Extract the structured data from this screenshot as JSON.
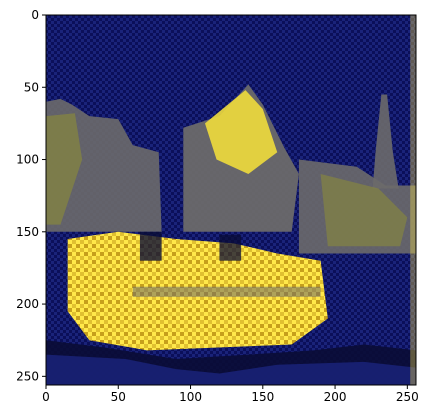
{
  "chart_data": {
    "type": "heatmap",
    "title": "",
    "xlabel": "",
    "ylabel": "",
    "image_shape": [
      256,
      256
    ],
    "xlim": [
      0,
      256
    ],
    "ylim": [
      256,
      0
    ],
    "x_ticks": [
      0,
      50,
      100,
      150,
      200,
      250
    ],
    "y_ticks": [
      0,
      50,
      100,
      150,
      200,
      250
    ],
    "x_tick_labels": [
      "0",
      "50",
      "100",
      "150",
      "200",
      "250"
    ],
    "y_tick_labels": [
      "0",
      "50",
      "100",
      "150",
      "200",
      "250"
    ],
    "grid": false,
    "legend": "none",
    "colors": {
      "background": "#0b0f5a",
      "dark_navy": "#0a0c35",
      "blue": "#1e2a8c",
      "gray": "#6b6a6a",
      "olive": "#8a8a3a",
      "yellow": "#f0dc3c",
      "bright_yellow": "#ffe84a"
    },
    "content_regions": [
      {
        "region": "upper sky",
        "x_range": [
          0,
          256
        ],
        "y_range": [
          0,
          55
        ],
        "dominant_color": "dark blue"
      },
      {
        "region": "left buildings",
        "x_range": [
          0,
          80
        ],
        "y_range": [
          55,
          150
        ],
        "dominant_color": "gray-olive"
      },
      {
        "region": "central gabled roof",
        "x_range": [
          95,
          175
        ],
        "y_range": [
          45,
          150
        ],
        "dominant_color": "yellow and gray"
      },
      {
        "region": "right tower",
        "x_range": [
          225,
          245
        ],
        "y_range": [
          55,
          120
        ],
        "dominant_color": "gray"
      },
      {
        "region": "right buildings",
        "x_range": [
          175,
          256
        ],
        "y_range": [
          100,
          160
        ],
        "dominant_color": "gray-olive"
      },
      {
        "region": "lower yellow facade",
        "x_range": [
          15,
          190
        ],
        "y_range": [
          150,
          230
        ],
        "dominant_color": "bright yellow"
      },
      {
        "region": "bottom foreground",
        "x_range": [
          0,
          256
        ],
        "y_range": [
          225,
          256
        ],
        "dominant_color": "dark blue"
      }
    ]
  }
}
